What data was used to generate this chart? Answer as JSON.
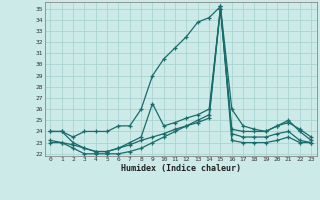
{
  "xlabel": "Humidex (Indice chaleur)",
  "bg_color": "#cceae8",
  "line_color": "#1a6b6b",
  "grid_color": "#aad4d2",
  "xlim": [
    -0.5,
    23.5
  ],
  "ylim": [
    21.8,
    35.6
  ],
  "yticks": [
    22,
    23,
    24,
    25,
    26,
    27,
    28,
    29,
    30,
    31,
    32,
    33,
    34,
    35
  ],
  "xticks": [
    0,
    1,
    2,
    3,
    4,
    5,
    6,
    7,
    8,
    9,
    10,
    11,
    12,
    13,
    14,
    15,
    16,
    17,
    18,
    19,
    20,
    21,
    22,
    23
  ],
  "lines": [
    {
      "x": [
        0,
        1,
        2,
        3,
        4,
        5,
        6,
        7,
        8,
        9,
        10,
        11,
        12,
        13,
        14,
        15,
        16,
        17,
        18,
        19,
        20,
        21,
        22,
        23
      ],
      "y": [
        24.0,
        24.0,
        23.5,
        24.0,
        24.0,
        24.0,
        24.5,
        24.5,
        26.0,
        29.0,
        30.5,
        31.5,
        32.5,
        33.8,
        34.2,
        35.2,
        26.0,
        24.5,
        24.2,
        24.0,
        24.5,
        25.0,
        24.0,
        23.2
      ]
    },
    {
      "x": [
        0,
        1,
        2,
        3,
        4,
        5,
        6,
        7,
        8,
        9,
        10,
        11,
        12,
        13,
        14,
        15,
        16,
        17,
        18,
        19,
        20,
        21,
        22,
        23
      ],
      "y": [
        24.0,
        24.0,
        23.0,
        22.5,
        22.2,
        22.2,
        22.5,
        23.0,
        23.5,
        26.5,
        24.5,
        24.8,
        25.2,
        25.5,
        26.0,
        35.0,
        24.2,
        24.0,
        24.0,
        24.0,
        24.5,
        24.8,
        24.2,
        23.5
      ]
    },
    {
      "x": [
        0,
        1,
        2,
        3,
        4,
        5,
        6,
        7,
        8,
        9,
        10,
        11,
        12,
        13,
        14,
        15,
        16,
        17,
        18,
        19,
        20,
        21,
        22,
        23
      ],
      "y": [
        23.2,
        23.0,
        22.8,
        22.5,
        22.2,
        22.2,
        22.5,
        22.8,
        23.2,
        23.5,
        23.8,
        24.2,
        24.5,
        24.8,
        25.2,
        35.0,
        23.8,
        23.5,
        23.5,
        23.5,
        23.8,
        24.0,
        23.2,
        23.0
      ]
    },
    {
      "x": [
        0,
        1,
        2,
        3,
        4,
        5,
        6,
        7,
        8,
        9,
        10,
        11,
        12,
        13,
        14,
        15,
        16,
        17,
        18,
        19,
        20,
        21,
        22,
        23
      ],
      "y": [
        23.0,
        23.0,
        22.5,
        22.0,
        22.0,
        22.0,
        22.0,
        22.2,
        22.5,
        23.0,
        23.5,
        24.0,
        24.5,
        25.0,
        25.5,
        35.2,
        23.2,
        23.0,
        23.0,
        23.0,
        23.2,
        23.5,
        23.0,
        23.0
      ]
    }
  ]
}
